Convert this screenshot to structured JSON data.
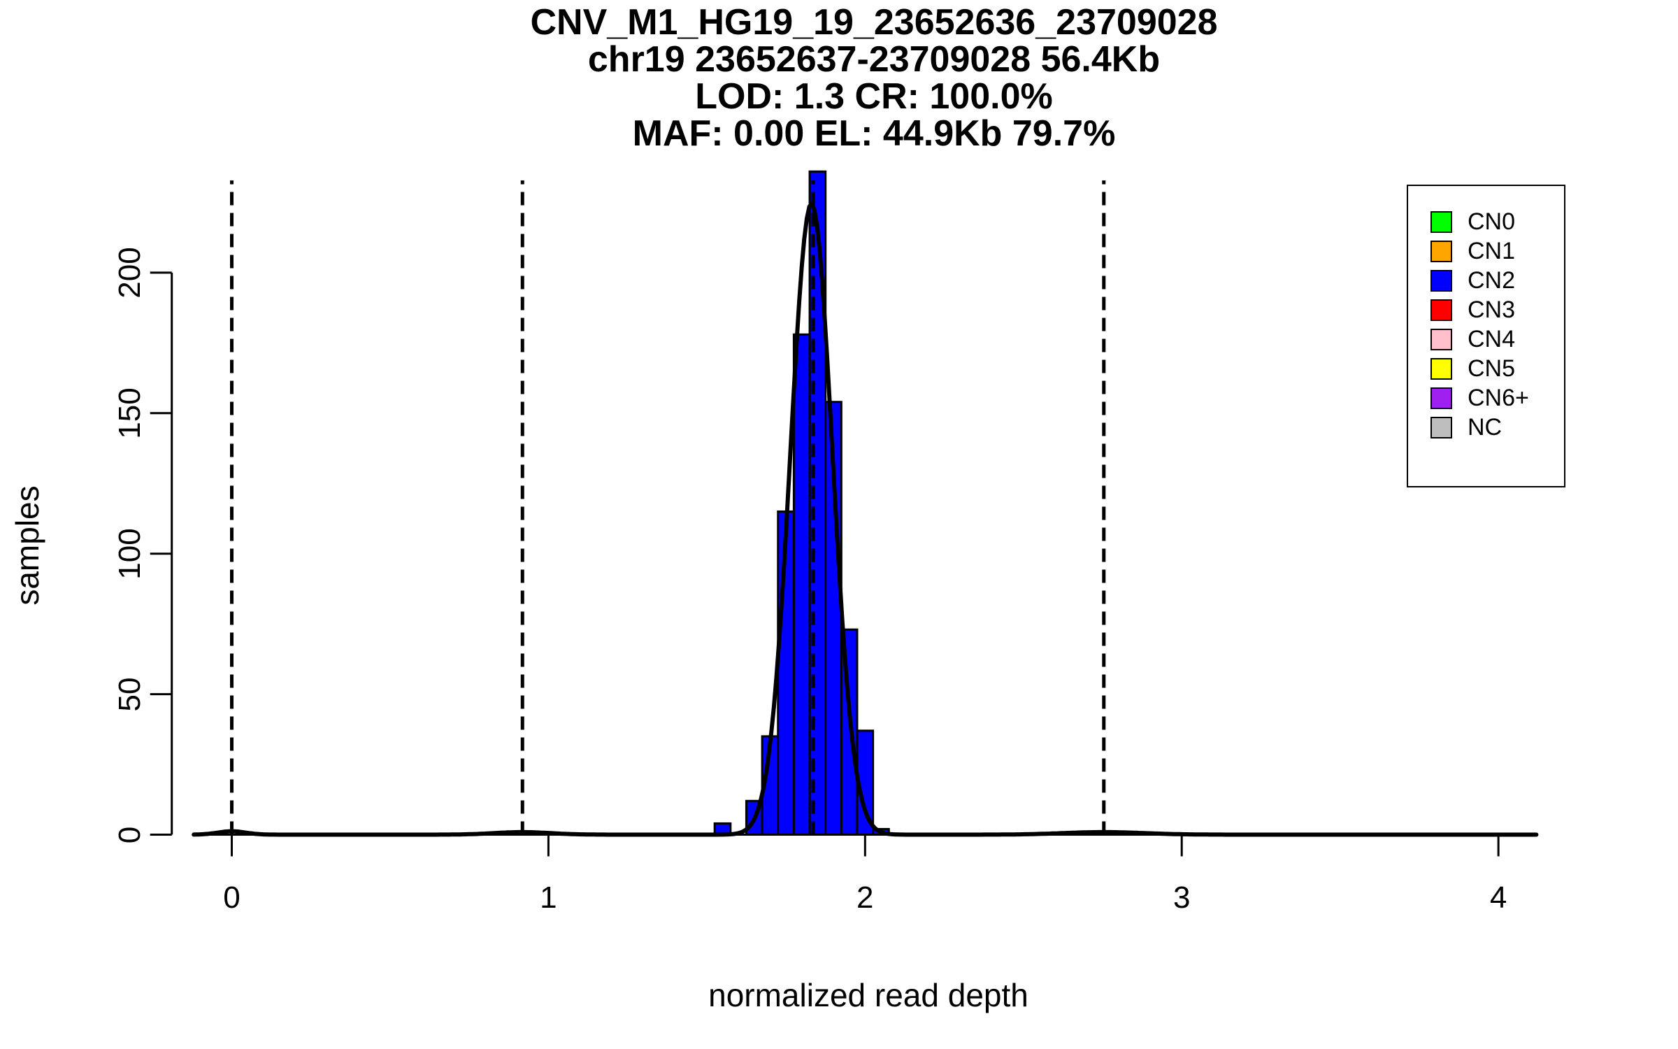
{
  "title": {
    "line1": "CNV_M1_HG19_19_23652636_23709028",
    "line2": "chr19 23652637-23709028 56.4Kb",
    "line3": "LOD: 1.3 CR: 100.0%",
    "line4": "MAF: 0.00 EL: 44.9Kb 79.7%"
  },
  "axes": {
    "x_label": "normalized read depth",
    "y_label": "samples",
    "x_ticks": [
      "0",
      "1",
      "2",
      "3",
      "4"
    ],
    "y_ticks": [
      "0",
      "50",
      "100",
      "150",
      "200"
    ]
  },
  "legend": {
    "items": [
      {
        "label": "CN0",
        "color": "#00FF00"
      },
      {
        "label": "CN1",
        "color": "#FFA500"
      },
      {
        "label": "CN2",
        "color": "#0000FF"
      },
      {
        "label": "CN3",
        "color": "#FF0000"
      },
      {
        "label": "CN4",
        "color": "#FFC0CB"
      },
      {
        "label": "CN5",
        "color": "#FFFF00"
      },
      {
        "label": "CN6+",
        "color": "#A020F0"
      },
      {
        "label": "NC",
        "color": "#BEBEBE"
      }
    ]
  },
  "chart_data": {
    "type": "bar",
    "subtype": "histogram",
    "title_lines": [
      "CNV_M1_HG19_19_23652636_23709028",
      "chr19 23652637-23709028 56.4Kb",
      "LOD: 1.3 CR: 100.0%",
      "MAF: 0.00 EL: 44.9Kb 79.7%"
    ],
    "xlabel": "normalized read depth",
    "ylabel": "samples",
    "xlim": [
      -0.15,
      4.15
    ],
    "ylim": [
      0,
      233
    ],
    "x_tick_values": [
      0,
      1,
      2,
      3,
      4
    ],
    "y_tick_values": [
      0,
      50,
      100,
      150,
      200
    ],
    "grid": false,
    "legend_position": "top-right",
    "bar_color": "#0000FF",
    "bar_edge_color": "#000000",
    "bins": [
      {
        "x0": 1.525,
        "x1": 1.575,
        "count": 4
      },
      {
        "x0": 1.575,
        "x1": 1.625,
        "count": 0
      },
      {
        "x0": 1.625,
        "x1": 1.675,
        "count": 12
      },
      {
        "x0": 1.675,
        "x1": 1.725,
        "count": 35
      },
      {
        "x0": 1.725,
        "x1": 1.775,
        "count": 115
      },
      {
        "x0": 1.775,
        "x1": 1.825,
        "count": 178
      },
      {
        "x0": 1.825,
        "x1": 1.875,
        "count": 236
      },
      {
        "x0": 1.875,
        "x1": 1.925,
        "count": 154
      },
      {
        "x0": 1.925,
        "x1": 1.975,
        "count": 73
      },
      {
        "x0": 1.975,
        "x1": 2.025,
        "count": 37
      },
      {
        "x0": 2.025,
        "x1": 2.075,
        "count": 2
      }
    ],
    "dashed_guides_x": [
      0,
      0.918,
      1.836,
      2.754
    ],
    "density_curve": {
      "color": "#000000",
      "components": [
        {
          "mean": 1.8305,
          "sd": 0.0663,
          "amp": 224.6
        },
        {
          "mean": 0.0,
          "sd": 0.045,
          "amp": 1.2
        },
        {
          "mean": 0.918,
          "sd": 0.09,
          "amp": 0.9
        },
        {
          "mean": 2.754,
          "sd": 0.13,
          "amp": 0.9
        }
      ]
    }
  }
}
